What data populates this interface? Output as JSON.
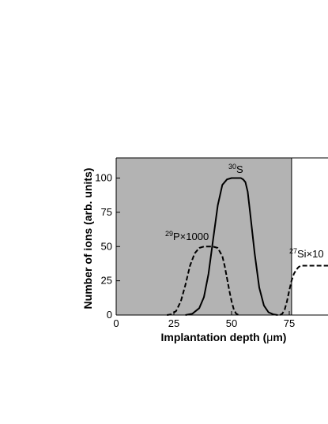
{
  "chart_data": {
    "type": "line",
    "xlabel_prefix": "Implantation depth (",
    "xlabel_mu": "μ",
    "xlabel_suffix": "m)",
    "ylabel": "Number of ions (arb. units)",
    "xlim": [
      0,
      92
    ],
    "ylim": [
      0,
      115
    ],
    "x_ticks": [
      "0",
      "25",
      "50",
      "75"
    ],
    "y_ticks": [
      "0",
      "25",
      "50",
      "75",
      "100"
    ],
    "shaded_region": {
      "x_from": 0,
      "x_to": 76,
      "color": "#b3b3b3"
    },
    "series": [
      {
        "label_sup": "30",
        "label_main": "S",
        "style": "solid",
        "x": [
          30,
          33,
          36,
          38,
          40,
          42,
          44,
          46,
          48,
          50,
          52,
          54,
          55,
          56,
          57,
          58,
          60,
          62,
          64,
          66,
          68,
          70
        ],
        "y": [
          0,
          1,
          5,
          13,
          30,
          55,
          80,
          95,
          99,
          100,
          100,
          100,
          99,
          97,
          90,
          75,
          45,
          20,
          7,
          2,
          0.5,
          0
        ]
      },
      {
        "label_sup": "29",
        "label_main": "P×1000",
        "style": "dashed",
        "x": [
          22,
          24,
          26,
          28,
          30,
          32,
          34,
          36,
          38,
          40,
          42,
          44,
          46,
          47,
          48,
          49,
          50,
          51,
          52,
          53
        ],
        "y": [
          0,
          0.5,
          3,
          10,
          22,
          36,
          45,
          49,
          50,
          50,
          50,
          49,
          43,
          36,
          27,
          18,
          10,
          4,
          1,
          0
        ]
      },
      {
        "label_sup": "27",
        "label_main": "Si×10",
        "style": "dashed",
        "x": [
          71,
          72,
          73,
          74,
          75,
          76,
          77,
          78,
          79,
          80,
          82,
          84,
          86,
          88,
          90,
          92
        ],
        "y": [
          0,
          1,
          4,
          10,
          18,
          25,
          30,
          33,
          35,
          36,
          36,
          36,
          36,
          36,
          36,
          36
        ]
      }
    ]
  }
}
